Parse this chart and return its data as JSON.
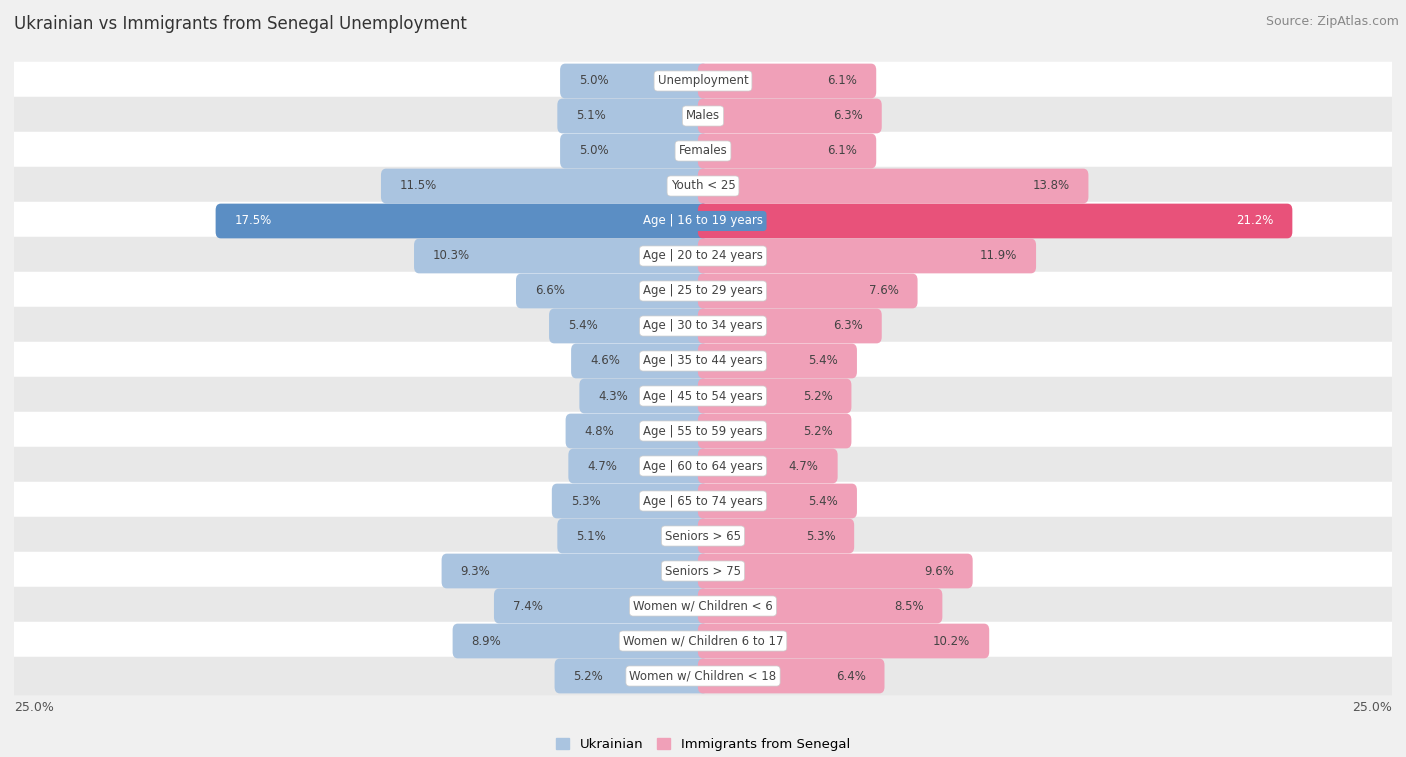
{
  "title": "Ukrainian vs Immigrants from Senegal Unemployment",
  "source": "Source: ZipAtlas.com",
  "categories": [
    "Unemployment",
    "Males",
    "Females",
    "Youth < 25",
    "Age | 16 to 19 years",
    "Age | 20 to 24 years",
    "Age | 25 to 29 years",
    "Age | 30 to 34 years",
    "Age | 35 to 44 years",
    "Age | 45 to 54 years",
    "Age | 55 to 59 years",
    "Age | 60 to 64 years",
    "Age | 65 to 74 years",
    "Seniors > 65",
    "Seniors > 75",
    "Women w/ Children < 6",
    "Women w/ Children 6 to 17",
    "Women w/ Children < 18"
  ],
  "ukrainian": [
    5.0,
    5.1,
    5.0,
    11.5,
    17.5,
    10.3,
    6.6,
    5.4,
    4.6,
    4.3,
    4.8,
    4.7,
    5.3,
    5.1,
    9.3,
    7.4,
    8.9,
    5.2
  ],
  "senegal": [
    6.1,
    6.3,
    6.1,
    13.8,
    21.2,
    11.9,
    7.6,
    6.3,
    5.4,
    5.2,
    5.2,
    4.7,
    5.4,
    5.3,
    9.6,
    8.5,
    10.2,
    6.4
  ],
  "ukrainian_color": "#aac4e0",
  "senegal_color": "#f0a0b8",
  "ukrainian_highlight_color": "#5b8ec4",
  "senegal_highlight_color": "#e8527a",
  "bg_color": "#f0f0f0",
  "row_white": "#ffffff",
  "row_gray": "#e8e8e8",
  "x_max": 25.0,
  "bar_height": 0.62,
  "label_fontsize": 8.5,
  "title_fontsize": 12,
  "source_fontsize": 9,
  "legend_ukrainian": "Ukrainian",
  "legend_senegal": "Immigrants from Senegal"
}
